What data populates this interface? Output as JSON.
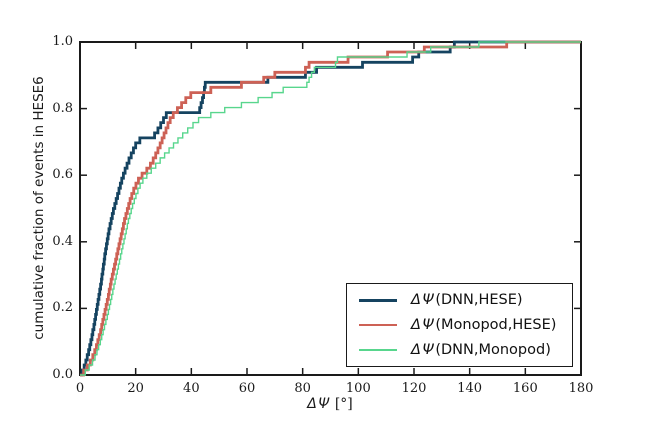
{
  "figure": {
    "background": "#ffffff",
    "axis_color": "#1a1a1a",
    "ylabel": "cumulative fraction of events in HESE6",
    "xlabel": {
      "math": "ΔΨ",
      "unit": "[°]"
    }
  },
  "legend": {
    "position": "lower right",
    "items": [
      {
        "math": "ΔΨ",
        "rest": "(DNN,HESE)"
      },
      {
        "math": "ΔΨ",
        "rest": "(Monopod,HESE)"
      },
      {
        "math": "ΔΨ",
        "rest": "(DNN,Monopod)"
      }
    ]
  },
  "chart_data": {
    "type": "line",
    "subtype": "step-cdf",
    "title": "",
    "xlabel": "ΔΨ [°]",
    "ylabel": "cumulative fraction of events in HESE6",
    "xlim": [
      0,
      180
    ],
    "ylim": [
      0.0,
      1.0
    ],
    "grid": false,
    "legend_position": "lower right",
    "x_ticks": {
      "values": [
        0,
        20,
        40,
        60,
        80,
        100,
        120,
        140,
        160,
        180
      ],
      "labels": [
        "0",
        "20",
        "40",
        "60",
        "80",
        "100",
        "120",
        "140",
        "160",
        "180"
      ]
    },
    "y_ticks": {
      "values": [
        0.0,
        0.2,
        0.4,
        0.6,
        0.8,
        1.0
      ],
      "labels": [
        "0.0",
        "0.2",
        "0.4",
        "0.6",
        "0.8",
        "1.0"
      ]
    },
    "series": [
      {
        "id": "dnn-hese",
        "name": "ΔΨ(DNN,HESE)",
        "color": "#154360",
        "linewidth": 2.8,
        "points": [
          [
            0.7,
            0.015
          ],
          [
            1.5,
            0.03
          ],
          [
            2.1,
            0.045
          ],
          [
            2.6,
            0.061
          ],
          [
            3.1,
            0.076
          ],
          [
            3.5,
            0.091
          ],
          [
            3.9,
            0.106
          ],
          [
            4.3,
            0.121
          ],
          [
            4.6,
            0.136
          ],
          [
            5.0,
            0.152
          ],
          [
            5.3,
            0.167
          ],
          [
            5.6,
            0.182
          ],
          [
            5.9,
            0.197
          ],
          [
            6.2,
            0.212
          ],
          [
            6.5,
            0.227
          ],
          [
            6.8,
            0.242
          ],
          [
            7.1,
            0.258
          ],
          [
            7.4,
            0.273
          ],
          [
            7.7,
            0.288
          ],
          [
            7.9,
            0.303
          ],
          [
            8.2,
            0.318
          ],
          [
            8.4,
            0.333
          ],
          [
            8.7,
            0.348
          ],
          [
            8.9,
            0.364
          ],
          [
            9.2,
            0.379
          ],
          [
            9.5,
            0.394
          ],
          [
            9.8,
            0.409
          ],
          [
            10.1,
            0.424
          ],
          [
            10.4,
            0.439
          ],
          [
            10.8,
            0.455
          ],
          [
            11.2,
            0.47
          ],
          [
            11.6,
            0.485
          ],
          [
            12.0,
            0.5
          ],
          [
            12.5,
            0.515
          ],
          [
            13.0,
            0.53
          ],
          [
            13.5,
            0.545
          ],
          [
            14.0,
            0.561
          ],
          [
            14.5,
            0.576
          ],
          [
            15.0,
            0.591
          ],
          [
            15.6,
            0.606
          ],
          [
            16.2,
            0.621
          ],
          [
            16.9,
            0.636
          ],
          [
            17.6,
            0.652
          ],
          [
            18.4,
            0.667
          ],
          [
            19.2,
            0.682
          ],
          [
            20.0,
            0.697
          ],
          [
            21.5,
            0.712
          ],
          [
            26.8,
            0.727
          ],
          [
            28.0,
            0.742
          ],
          [
            29.0,
            0.758
          ],
          [
            30.0,
            0.773
          ],
          [
            31.0,
            0.788
          ],
          [
            43.0,
            0.803
          ],
          [
            43.5,
            0.818
          ],
          [
            44.0,
            0.833
          ],
          [
            44.4,
            0.848
          ],
          [
            44.7,
            0.864
          ],
          [
            45.0,
            0.879
          ],
          [
            67.5,
            0.894
          ],
          [
            81.0,
            0.909
          ],
          [
            85.0,
            0.924
          ],
          [
            101.5,
            0.939
          ],
          [
            119.5,
            0.955
          ],
          [
            121.7,
            0.97
          ],
          [
            133.0,
            0.985
          ],
          [
            134.5,
            1.0
          ]
        ]
      },
      {
        "id": "monopod-hese",
        "name": "ΔΨ(Monopod,HESE)",
        "color": "#CD6155",
        "linewidth": 2.8,
        "points": [
          [
            1.3,
            0.015
          ],
          [
            2.6,
            0.03
          ],
          [
            3.7,
            0.045
          ],
          [
            4.6,
            0.061
          ],
          [
            5.3,
            0.076
          ],
          [
            5.9,
            0.091
          ],
          [
            6.4,
            0.106
          ],
          [
            6.9,
            0.121
          ],
          [
            7.4,
            0.136
          ],
          [
            7.8,
            0.152
          ],
          [
            8.2,
            0.167
          ],
          [
            8.6,
            0.182
          ],
          [
            9.0,
            0.197
          ],
          [
            9.4,
            0.212
          ],
          [
            9.8,
            0.227
          ],
          [
            10.2,
            0.242
          ],
          [
            10.5,
            0.258
          ],
          [
            10.9,
            0.273
          ],
          [
            11.2,
            0.288
          ],
          [
            11.6,
            0.303
          ],
          [
            12.0,
            0.318
          ],
          [
            12.4,
            0.333
          ],
          [
            12.8,
            0.348
          ],
          [
            13.2,
            0.364
          ],
          [
            13.6,
            0.379
          ],
          [
            14.0,
            0.394
          ],
          [
            14.4,
            0.409
          ],
          [
            14.8,
            0.424
          ],
          [
            15.2,
            0.439
          ],
          [
            15.6,
            0.455
          ],
          [
            16.0,
            0.47
          ],
          [
            16.5,
            0.485
          ],
          [
            17.0,
            0.5
          ],
          [
            17.5,
            0.515
          ],
          [
            18.0,
            0.53
          ],
          [
            18.6,
            0.545
          ],
          [
            19.3,
            0.561
          ],
          [
            20.1,
            0.576
          ],
          [
            21.0,
            0.591
          ],
          [
            22.3,
            0.606
          ],
          [
            24.0,
            0.621
          ],
          [
            25.3,
            0.636
          ],
          [
            26.3,
            0.652
          ],
          [
            27.2,
            0.667
          ],
          [
            28.0,
            0.682
          ],
          [
            28.8,
            0.697
          ],
          [
            29.5,
            0.712
          ],
          [
            30.2,
            0.727
          ],
          [
            30.9,
            0.742
          ],
          [
            31.6,
            0.758
          ],
          [
            32.4,
            0.773
          ],
          [
            33.5,
            0.788
          ],
          [
            35.0,
            0.803
          ],
          [
            36.5,
            0.818
          ],
          [
            38.0,
            0.833
          ],
          [
            39.8,
            0.848
          ],
          [
            47.0,
            0.864
          ],
          [
            58.0,
            0.879
          ],
          [
            66.0,
            0.894
          ],
          [
            70.0,
            0.909
          ],
          [
            81.0,
            0.924
          ],
          [
            82.3,
            0.939
          ],
          [
            96.3,
            0.955
          ],
          [
            110.5,
            0.97
          ],
          [
            123.7,
            0.985
          ],
          [
            153.3,
            1.0
          ]
        ]
      },
      {
        "id": "dnn-monopod",
        "name": "ΔΨ(DNN,Monopod)",
        "color": "#58D68D",
        "linewidth": 1.4,
        "points": [
          [
            1.9,
            0.015
          ],
          [
            3.3,
            0.03
          ],
          [
            4.5,
            0.045
          ],
          [
            5.4,
            0.061
          ],
          [
            6.1,
            0.076
          ],
          [
            6.7,
            0.091
          ],
          [
            7.3,
            0.106
          ],
          [
            7.8,
            0.121
          ],
          [
            8.3,
            0.136
          ],
          [
            8.8,
            0.152
          ],
          [
            9.3,
            0.167
          ],
          [
            9.8,
            0.182
          ],
          [
            10.2,
            0.197
          ],
          [
            10.6,
            0.212
          ],
          [
            11.0,
            0.227
          ],
          [
            11.4,
            0.242
          ],
          [
            11.8,
            0.258
          ],
          [
            12.2,
            0.273
          ],
          [
            12.6,
            0.288
          ],
          [
            13.0,
            0.303
          ],
          [
            13.4,
            0.318
          ],
          [
            13.8,
            0.333
          ],
          [
            14.2,
            0.348
          ],
          [
            14.6,
            0.364
          ],
          [
            15.0,
            0.379
          ],
          [
            15.4,
            0.394
          ],
          [
            15.8,
            0.409
          ],
          [
            16.2,
            0.424
          ],
          [
            16.6,
            0.439
          ],
          [
            17.0,
            0.455
          ],
          [
            17.4,
            0.47
          ],
          [
            17.9,
            0.485
          ],
          [
            18.4,
            0.5
          ],
          [
            18.9,
            0.515
          ],
          [
            19.5,
            0.53
          ],
          [
            20.1,
            0.545
          ],
          [
            20.8,
            0.561
          ],
          [
            21.6,
            0.576
          ],
          [
            22.6,
            0.591
          ],
          [
            24.0,
            0.606
          ],
          [
            25.6,
            0.621
          ],
          [
            27.2,
            0.636
          ],
          [
            28.8,
            0.652
          ],
          [
            30.4,
            0.667
          ],
          [
            32.0,
            0.682
          ],
          [
            33.6,
            0.697
          ],
          [
            35.2,
            0.712
          ],
          [
            36.9,
            0.727
          ],
          [
            38.7,
            0.742
          ],
          [
            40.6,
            0.758
          ],
          [
            42.6,
            0.773
          ],
          [
            47.0,
            0.788
          ],
          [
            52.0,
            0.803
          ],
          [
            58.0,
            0.818
          ],
          [
            64.0,
            0.833
          ],
          [
            69.0,
            0.848
          ],
          [
            73.0,
            0.864
          ],
          [
            81.5,
            0.879
          ],
          [
            82.3,
            0.894
          ],
          [
            83.2,
            0.909
          ],
          [
            84.2,
            0.924
          ],
          [
            91.8,
            0.939
          ],
          [
            92.5,
            0.955
          ],
          [
            117.5,
            0.97
          ],
          [
            126.0,
            0.985
          ],
          [
            143.3,
            1.0
          ]
        ]
      }
    ]
  }
}
